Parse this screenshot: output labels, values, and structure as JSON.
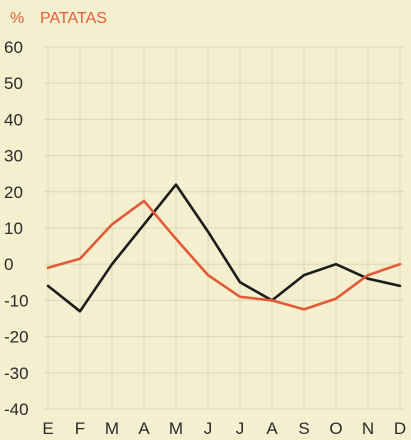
{
  "chart_data": {
    "type": "line",
    "title": "PATATAS",
    "unit_label": "%",
    "categories": [
      "E",
      "F",
      "M",
      "A",
      "M",
      "J",
      "J",
      "A",
      "S",
      "O",
      "N",
      "D"
    ],
    "ylim": [
      -40,
      60
    ],
    "yticks": [
      60,
      50,
      40,
      30,
      20,
      10,
      0,
      -10,
      -20,
      -30,
      -40
    ],
    "grid": true,
    "series": [
      {
        "color": "#1c1c1c",
        "values": [
          -6,
          -13,
          0,
          11,
          22,
          9,
          -5,
          -10,
          -3,
          0,
          -4,
          -6
        ]
      },
      {
        "color": "#e25a36",
        "values": [
          -1,
          1.5,
          11,
          17.5,
          7,
          -3,
          -9,
          -10,
          -12.5,
          -9.5,
          -3,
          0
        ]
      }
    ]
  }
}
